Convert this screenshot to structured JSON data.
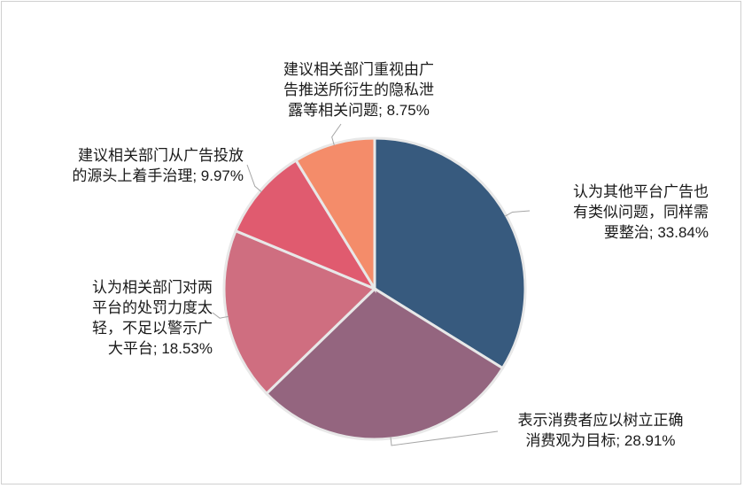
{
  "chart_data": {
    "type": "pie",
    "title": "",
    "slices": [
      {
        "label": "认为其他平台广告也\n有类似问题，同样需\n要整治",
        "value": 33.84,
        "value_text": "33.84%",
        "color": "#375A7E"
      },
      {
        "label": "表示消费者应以树立正确\n消费观为目标",
        "value": 28.91,
        "value_text": "28.91%",
        "color": "#94657F"
      },
      {
        "label": "认为相关部门对两\n平台的处罚力度太\n轻，不足以警示广\n大平台",
        "value": 18.53,
        "value_text": "18.53%",
        "color": "#CF6E80"
      },
      {
        "label": "建议相关部门从广告投放\n的源头上着手治理",
        "value": 9.97,
        "value_text": "9.97%",
        "color": "#E05B6F"
      },
      {
        "label": "建议相关部门重视由广\n告推送所衍生的隐私泄\n露等相关问题",
        "value": 8.75,
        "value_text": "8.75%",
        "color": "#F48C6A"
      }
    ],
    "start_angle": "12 o'clock",
    "direction": "clockwise",
    "legend": "none"
  }
}
